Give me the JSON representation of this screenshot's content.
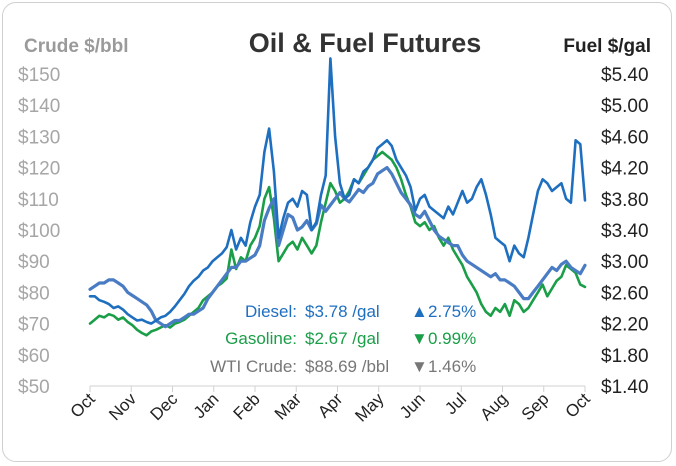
{
  "chart_data": {
    "type": "line",
    "title": "Oil & Fuel Futures",
    "ylabel_left": "Crude $/bbl",
    "ylabel_right": "Fuel $/gal",
    "ylim_left": [
      50,
      150
    ],
    "ylim_right": [
      1.4,
      5.4
    ],
    "yticks_left": [
      "$150",
      "$140",
      "$130",
      "$120",
      "$110",
      "$100",
      "$90",
      "$80",
      "$70",
      "$60",
      "$50"
    ],
    "yticks_right": [
      "$5.40",
      "$5.00",
      "$4.60",
      "$4.20",
      "$3.80",
      "$3.40",
      "$3.00",
      "$2.60",
      "$2.20",
      "$1.80",
      "$1.40"
    ],
    "xticks": [
      "Oct",
      "Nov",
      "Dec",
      "Jan",
      "Feb",
      "Mar",
      "Apr",
      "May",
      "Jun",
      "Jul",
      "Aug",
      "Sep",
      "Oct"
    ],
    "grid": false,
    "series": [
      {
        "name": "Diesel",
        "axis": "right",
        "color": "#1f6fc0",
        "values": [
          2.55,
          2.55,
          2.5,
          2.48,
          2.45,
          2.4,
          2.42,
          2.38,
          2.32,
          2.28,
          2.24,
          2.25,
          2.22,
          2.2,
          2.24,
          2.28,
          2.3,
          2.35,
          2.42,
          2.5,
          2.58,
          2.68,
          2.75,
          2.8,
          2.88,
          2.92,
          3.0,
          3.05,
          3.1,
          3.18,
          3.4,
          3.15,
          3.3,
          3.2,
          3.5,
          3.7,
          3.85,
          4.4,
          4.7,
          4.15,
          3.3,
          3.55,
          3.75,
          3.8,
          3.7,
          3.9,
          3.85,
          3.4,
          3.5,
          3.85,
          4.1,
          5.6,
          4.6,
          4.0,
          3.8,
          3.85,
          4.05,
          4.0,
          4.15,
          4.2,
          4.3,
          4.45,
          4.5,
          4.55,
          4.48,
          4.3,
          4.2,
          4.1,
          3.95,
          3.65,
          3.8,
          3.85,
          3.7,
          3.65,
          3.6,
          3.55,
          3.7,
          3.6,
          3.75,
          3.9,
          3.75,
          3.8,
          3.95,
          4.05,
          3.85,
          3.6,
          3.3,
          3.25,
          3.2,
          3.0,
          3.2,
          3.1,
          3.05,
          3.3,
          3.6,
          3.9,
          4.05,
          4.0,
          3.9,
          3.95,
          4.0,
          3.8,
          3.75,
          4.55,
          4.5,
          3.78
        ]
      },
      {
        "name": "Gasoline",
        "axis": "right",
        "color": "#1a9e48",
        "values": [
          2.2,
          2.25,
          2.3,
          2.28,
          2.32,
          2.3,
          2.25,
          2.28,
          2.22,
          2.18,
          2.12,
          2.08,
          2.05,
          2.1,
          2.12,
          2.15,
          2.18,
          2.15,
          2.2,
          2.22,
          2.25,
          2.3,
          2.35,
          2.4,
          2.5,
          2.55,
          2.6,
          2.68,
          2.72,
          2.78,
          3.15,
          2.9,
          3.05,
          3.0,
          3.2,
          3.3,
          3.45,
          3.8,
          3.95,
          3.55,
          3.0,
          3.1,
          3.2,
          3.25,
          3.15,
          3.3,
          3.2,
          3.1,
          3.2,
          3.5,
          3.75,
          4.0,
          3.9,
          3.75,
          3.8,
          3.9,
          4.05,
          4.0,
          4.1,
          4.2,
          4.3,
          4.35,
          4.4,
          4.35,
          4.3,
          4.2,
          4.05,
          3.85,
          3.7,
          3.5,
          3.45,
          3.5,
          3.4,
          3.45,
          3.3,
          3.2,
          3.3,
          3.15,
          3.05,
          2.95,
          2.8,
          2.7,
          2.6,
          2.45,
          2.35,
          2.3,
          2.4,
          2.35,
          2.45,
          2.3,
          2.5,
          2.45,
          2.35,
          2.4,
          2.5,
          2.6,
          2.7,
          2.55,
          2.65,
          2.75,
          2.8,
          2.95,
          2.9,
          2.85,
          2.7,
          2.67
        ]
      },
      {
        "name": "WTI Crude",
        "axis": "left",
        "color": "#4a7cc4",
        "values": [
          81,
          82,
          83,
          83,
          84,
          84,
          83,
          82,
          80,
          79,
          78,
          77,
          76,
          74,
          71,
          70,
          69,
          70,
          71,
          71,
          72,
          73,
          73,
          74,
          75,
          78,
          80,
          82,
          84,
          86,
          88,
          88,
          90,
          90,
          91,
          92,
          95,
          103,
          107,
          110,
          95,
          100,
          105,
          104,
          100,
          101,
          103,
          100,
          102,
          108,
          106,
          108,
          110,
          112,
          110,
          109,
          111,
          113,
          112,
          114,
          115,
          118,
          119,
          120,
          118,
          115,
          112,
          110,
          108,
          105,
          104,
          106,
          103,
          100,
          98,
          97,
          96,
          95,
          95,
          92,
          90,
          89,
          88,
          87,
          86,
          85,
          86,
          84,
          84,
          83,
          82,
          80,
          78,
          78,
          80,
          82,
          84,
          86,
          88,
          87,
          89,
          90,
          88,
          87,
          86,
          88.69
        ]
      }
    ],
    "annotations": [
      {
        "label": "Diesel:",
        "value": "$3.78 /gal",
        "arrow": "▲",
        "change": "2.75%",
        "color": "#1f6fc0"
      },
      {
        "label": "Gasoline:",
        "value": "$2.67 /gal",
        "arrow": "▼",
        "change": "0.99%",
        "color": "#1a9e48"
      },
      {
        "label": "WTI Crude:",
        "value": "$88.69 /bbl",
        "arrow": "▼",
        "change": "1.46%",
        "color": "#777777"
      }
    ]
  }
}
